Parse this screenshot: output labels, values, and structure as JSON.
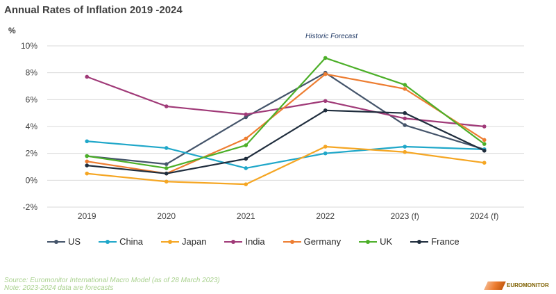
{
  "header": {
    "title": "Annual Rates of Inflation 2019 -2024",
    "y_unit": "%"
  },
  "annotation": "Historic Forecast",
  "footer": {
    "source": "Source: Euromonitor International Macro Model (as of 28 March 2023)",
    "note": "Note: 2023-2024 data are forecasts",
    "logo_text": "EUROMONITOR"
  },
  "chart_data": {
    "type": "line",
    "title": "Annual Rates of Inflation 2019 -2024",
    "ylabel": "%",
    "xlabel": "",
    "categories": [
      "2019",
      "2020",
      "2021",
      "2022",
      "2023 (f)",
      "2024 (f)"
    ],
    "ylim": [
      -2,
      10
    ],
    "yticks": [
      "-2%",
      "0%",
      "2%",
      "4%",
      "6%",
      "8%",
      "10%"
    ],
    "grid": "horizontal",
    "legend_position": "bottom",
    "series": [
      {
        "name": "US",
        "color": "#44546a",
        "values": [
          1.8,
          1.2,
          4.7,
          8.0,
          4.1,
          2.3
        ]
      },
      {
        "name": "China",
        "color": "#1fa7c9",
        "values": [
          2.9,
          2.4,
          0.9,
          2.0,
          2.5,
          2.3
        ]
      },
      {
        "name": "Japan",
        "color": "#f5a623",
        "values": [
          0.5,
          -0.1,
          -0.3,
          2.5,
          2.1,
          1.3
        ]
      },
      {
        "name": "India",
        "color": "#a03a78",
        "values": [
          7.7,
          5.5,
          4.9,
          5.9,
          4.6,
          4.0
        ]
      },
      {
        "name": "Germany",
        "color": "#ed7d31",
        "values": [
          1.4,
          0.5,
          3.1,
          7.9,
          6.8,
          3.0
        ]
      },
      {
        "name": "UK",
        "color": "#4caf28",
        "values": [
          1.8,
          0.9,
          2.6,
          9.1,
          7.1,
          2.7
        ]
      },
      {
        "name": "France",
        "color": "#1f2d3d",
        "values": [
          1.1,
          0.5,
          1.6,
          5.2,
          5.0,
          2.2
        ]
      }
    ]
  }
}
